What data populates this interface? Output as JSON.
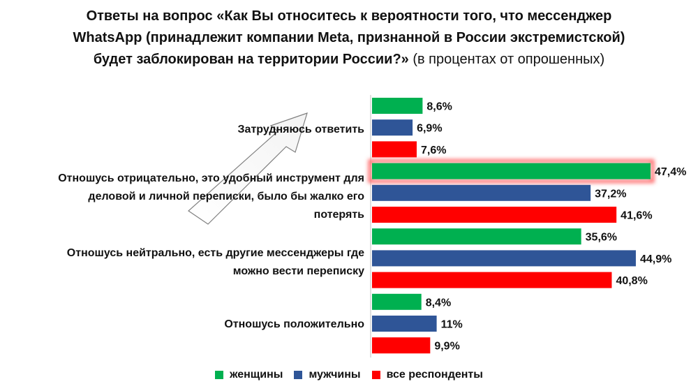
{
  "chart_data": {
    "type": "bar",
    "orientation": "horizontal",
    "title_bold": "Ответы на вопрос «Как Вы относитесь к вероятности того, что мессенджер WhatsApp (принадлежит компании Meta, признанной в России экстремистской) будет заблокирован на территории России?»",
    "title_normal": " (в процентах от опрошенных)",
    "categories": [
      "Затрудняюсь ответить",
      "Отношусь отрицательно, это удобный инструмент для деловой и личной переписки, было бы жалко его потерять",
      "Отношусь нейтрально, есть другие мессенджеры где можно вести переписку",
      "Отношусь положительно"
    ],
    "series": [
      {
        "name": "женщины",
        "color": "#00b050",
        "values": [
          8.6,
          47.4,
          35.6,
          8.4
        ],
        "labels": [
          "8,6%",
          "47,4%",
          "35,6%",
          "8,4%"
        ]
      },
      {
        "name": "мужчины",
        "color": "#2f5597",
        "values": [
          6.9,
          37.2,
          44.9,
          11.0
        ],
        "labels": [
          "6,9%",
          "37,2%",
          "44,9%",
          "11%"
        ]
      },
      {
        "name": "все респонденты",
        "color": "#ff0000",
        "values": [
          7.6,
          41.6,
          40.8,
          9.9
        ],
        "labels": [
          "7,6%",
          "41,6%",
          "40,8%",
          "9,9%"
        ]
      }
    ],
    "xlim": [
      0,
      50
    ],
    "highlight": {
      "category_index": 1,
      "series_index": 0
    },
    "legend_position": "bottom",
    "grid": false
  }
}
